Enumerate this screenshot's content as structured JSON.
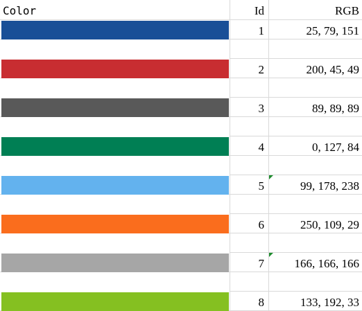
{
  "table": {
    "header": [
      "Color",
      "Id",
      "RGB"
    ],
    "rows": [
      {
        "color": "#194f97",
        "id": 1,
        "rgb": "25, 79, 151"
      },
      {
        "color": "#c82d31",
        "id": 2,
        "rgb": "200, 45, 49"
      },
      {
        "color": "#595959",
        "id": 3,
        "rgb": "89, 89, 89"
      },
      {
        "color": "#007f54",
        "id": 4,
        "rgb": "0, 127, 84"
      },
      {
        "color": "#63b2ee",
        "id": 5,
        "rgb": "99, 178, 238"
      },
      {
        "color": "#fa6d1d",
        "id": 6,
        "rgb": "250, 109, 29"
      },
      {
        "color": "#a6a6a6",
        "id": 7,
        "rgb": "166, 166, 166"
      },
      {
        "color": "#85c021",
        "id": 8,
        "rgb": "133, 192, 33"
      }
    ]
  }
}
